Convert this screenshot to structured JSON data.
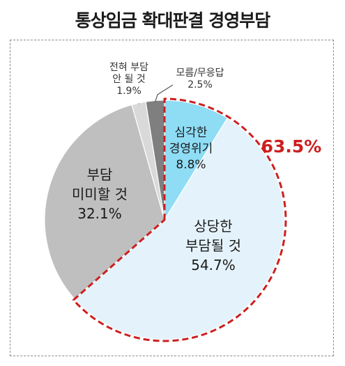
{
  "title": "통상임금 확대판결 경영부담",
  "chart_data": {
    "type": "pie",
    "start": "12 o'clock",
    "direction": "clockwise",
    "slices": [
      {
        "lines": [
          "심각한",
          "경영위기"
        ],
        "value": 8.8,
        "value_text": "8.8%",
        "color": "#8fdcf5"
      },
      {
        "lines": [
          "상당한",
          "부담될 것"
        ],
        "value": 54.7,
        "value_text": "54.7%",
        "color": "#e4f3fb"
      },
      {
        "lines": [
          "부담",
          "미미할 것"
        ],
        "value": 32.1,
        "value_text": "32.1%",
        "color": "#bfbfbf"
      },
      {
        "lines": [
          "전혀 부담",
          "안 될 것"
        ],
        "value": 1.9,
        "value_text": "1.9%",
        "color": "#d9d9d9"
      },
      {
        "lines": [
          "모름/무응답"
        ],
        "value": 2.5,
        "value_text": "2.5%",
        "color": "#7f7f7f"
      }
    ],
    "highlight": {
      "text": "63.5%",
      "color": "#cc1f1f",
      "covers_slices": [
        0,
        1
      ]
    }
  }
}
